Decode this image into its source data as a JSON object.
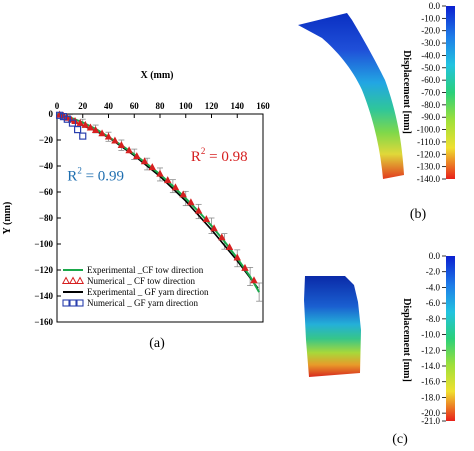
{
  "chart_data": [
    {
      "type": "scatter",
      "panel_label": "(a)",
      "title": "",
      "xlabel": "X (mm)",
      "ylabel": "Y (mm)",
      "xlim": [
        0,
        160
      ],
      "ylim": [
        -160,
        0
      ],
      "x_ticks": [
        0,
        20,
        40,
        60,
        80,
        100,
        120,
        140,
        160
      ],
      "y_ticks": [
        0,
        -20,
        -40,
        -60,
        -80,
        -100,
        -120,
        -140,
        -160
      ],
      "x_tick_labels": [
        "0",
        "20",
        "40",
        "60",
        "80",
        "100",
        "120",
        "140",
        "160"
      ],
      "y_tick_labels": [
        "0",
        "−20",
        "−40",
        "−60",
        "−80",
        "−100",
        "−120",
        "−140",
        "−160"
      ],
      "grid": false,
      "legend_position": "bottom-left",
      "annotations": [
        {
          "label": "R",
          "sup": "2",
          "value": " = 0.98",
          "color": "#d62020",
          "x": 104,
          "y": -36
        },
        {
          "label": "R",
          "sup": "2",
          "value": " = 0.99",
          "color": "#1f6fb0",
          "x": 8,
          "y": -51
        }
      ],
      "series": [
        {
          "name": "Experimental _CF tow direction",
          "kind": "line",
          "color": "#1aa84a",
          "x": [
            0,
            10,
            20,
            30,
            40,
            50,
            60,
            70,
            80,
            90,
            100,
            110,
            120,
            130,
            140,
            150,
            157
          ],
          "y": [
            0,
            -2.5,
            -6.5,
            -11.5,
            -17.5,
            -24,
            -31,
            -38.5,
            -46.5,
            -55.5,
            -65,
            -75,
            -86,
            -98,
            -111,
            -125,
            -137
          ],
          "error": [
            0,
            2,
            2.5,
            3,
            3.5,
            4,
            4,
            4.5,
            5,
            5,
            5.5,
            5.5,
            6,
            6,
            6.5,
            7,
            7
          ]
        },
        {
          "name": "Numerical _ CF tow direction",
          "kind": "marker",
          "marker": "triangle",
          "color": "#d62020",
          "x": [
            2,
            5,
            8,
            11,
            14,
            18,
            22,
            26,
            30,
            35,
            40,
            45,
            50,
            56,
            62,
            68,
            74,
            80,
            86,
            92,
            98,
            104,
            110,
            116,
            122,
            128,
            134,
            140,
            146,
            153
          ],
          "y": [
            -0.5,
            -1.5,
            -3,
            -4.5,
            -5.5,
            -7,
            -8.5,
            -10.5,
            -12.5,
            -15,
            -17.5,
            -20.5,
            -24,
            -28,
            -32.5,
            -36.5,
            -41,
            -46,
            -51,
            -56.5,
            -62,
            -68,
            -74.5,
            -81,
            -88,
            -95,
            -102.5,
            -110.5,
            -118.5,
            -128
          ]
        },
        {
          "name": "Experimental _ GF yarn direction",
          "kind": "line",
          "color": "#000000",
          "x": [
            0,
            5,
            10,
            15,
            20,
            25,
            30,
            40,
            60,
            80,
            100,
            120,
            140,
            150,
            156
          ],
          "y": [
            0,
            -2,
            -4,
            -6.5,
            -9,
            -11,
            -13,
            -18,
            -32,
            -48,
            -67,
            -89,
            -113,
            -126,
            -134
          ]
        },
        {
          "name": "Numerical _ GF yarn direction",
          "kind": "marker",
          "marker": "square",
          "color": "#2a3fae",
          "x": [
            2,
            5,
            8,
            12,
            16,
            20
          ],
          "y": [
            -1,
            -2,
            -4,
            -7,
            -12,
            -17
          ]
        }
      ]
    },
    {
      "type": "heatmap",
      "panel_label": "(b)",
      "title": "",
      "colorbar_label": "Displacement [mm]",
      "colorbar_range": [
        -140,
        0
      ],
      "colorbar_ticks": [
        "0.0",
        "-10.0",
        "-20.0",
        "-30.0",
        "-40.0",
        "-50.0",
        "-60.0",
        "-70.0",
        "-80.0",
        "-90.0",
        "-100.0",
        "-110.0",
        "-120.0",
        "-130.0",
        "-140.0"
      ],
      "colors": [
        "#0033cc",
        "#2ab5e0",
        "#4ed06a",
        "#e0e040",
        "#e03020"
      ]
    },
    {
      "type": "heatmap",
      "panel_label": "(c)",
      "title": "",
      "colorbar_label": "Displacement [mm]",
      "colorbar_range": [
        -21,
        0
      ],
      "colorbar_ticks": [
        "0.0",
        "-2.0",
        "-4.0",
        "-6.0",
        "-8.0",
        "-10.0",
        "-12.0",
        "-14.0",
        "-16.0",
        "-18.0",
        "-20.0",
        "-21.0"
      ],
      "colors": [
        "#0033cc",
        "#2ab5e0",
        "#4ed06a",
        "#e0e040",
        "#e03020"
      ]
    }
  ]
}
